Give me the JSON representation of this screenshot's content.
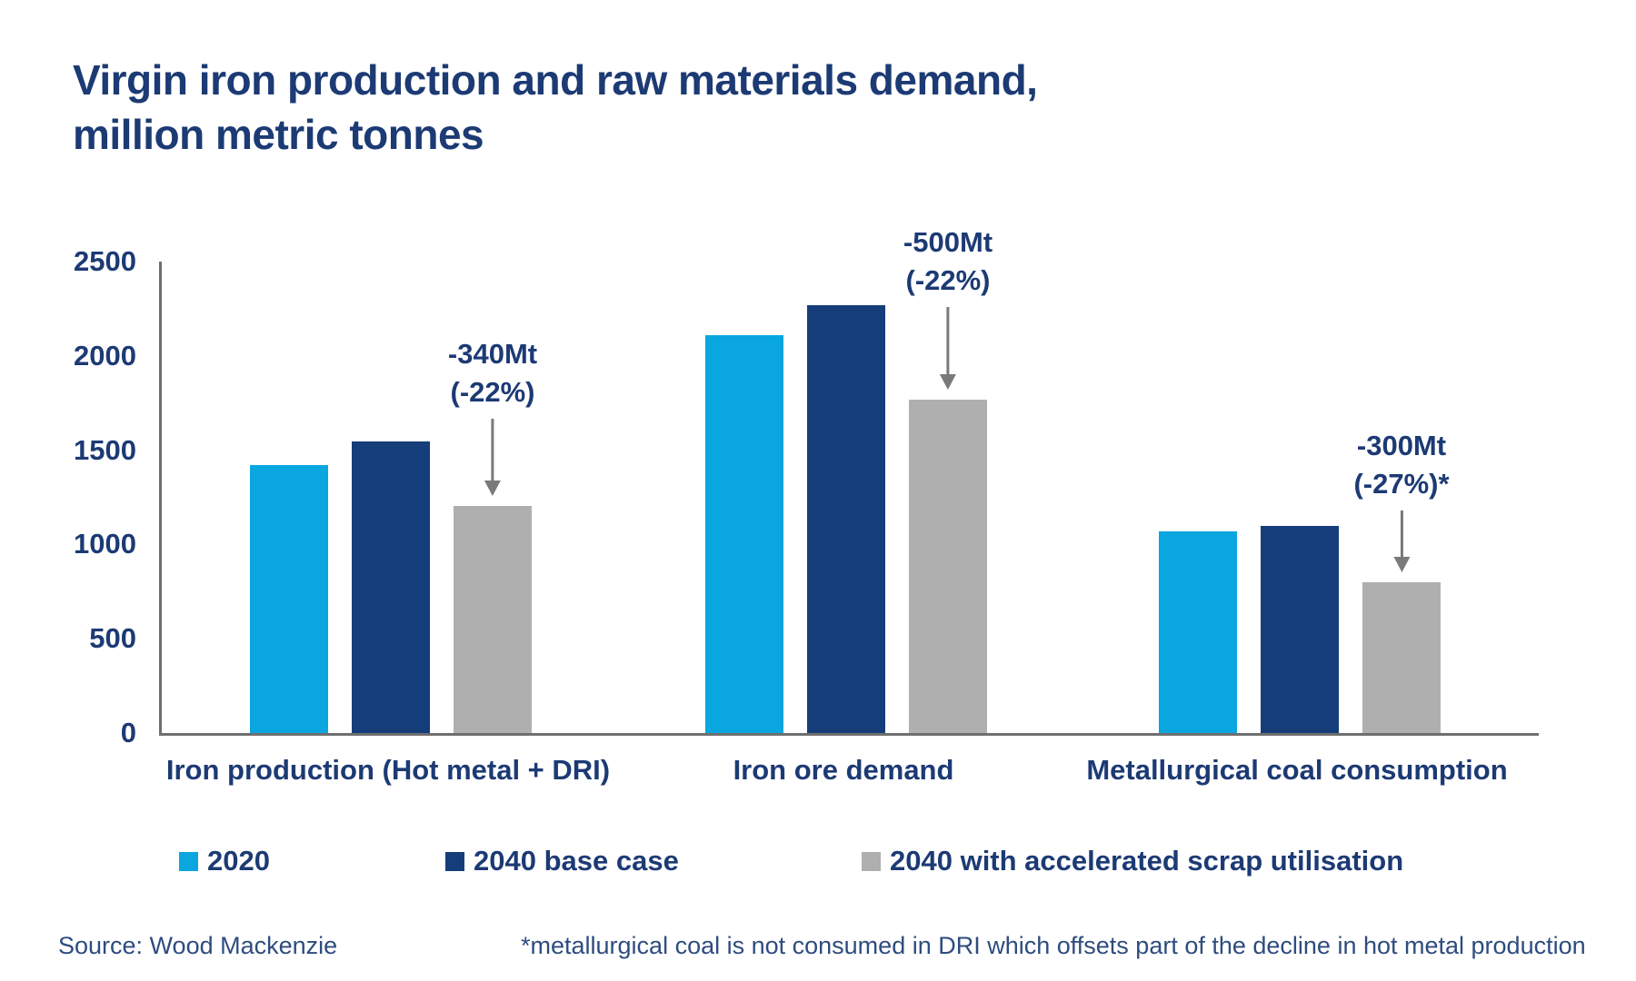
{
  "title": {
    "line1": "Virgin iron production and raw materials demand,",
    "line2": "million metric tonnes"
  },
  "chart_data": {
    "type": "bar",
    "title": "Virgin iron production and raw materials demand, million metric tonnes",
    "categories": [
      "Iron production (Hot metal + DRI)",
      "Iron ore demand",
      "Metallurgical coal consumption"
    ],
    "series": [
      {
        "name": "2020",
        "color": "#0AA6DF",
        "values": [
          1420,
          2110,
          1070
        ]
      },
      {
        "name": "2040 base case",
        "color": "#153D7A",
        "values": [
          1545,
          2270,
          1100
        ]
      },
      {
        "name": "2040 with accelerated scrap utilisation",
        "color": "#AFAFAF",
        "values": [
          1205,
          1770,
          800
        ]
      }
    ],
    "ylim": [
      0,
      2500
    ],
    "yticks": [
      0,
      500,
      1000,
      1500,
      2000,
      2500
    ],
    "ylabel": "million metric tonnes",
    "xlabel": "",
    "grid": false,
    "legend_position": "bottom",
    "annotations": [
      {
        "group_index": 0,
        "series_index": 2,
        "line1": "-340Mt",
        "line2": "(-22%)"
      },
      {
        "group_index": 1,
        "series_index": 2,
        "line1": "-500Mt",
        "line2": "(-22%)"
      },
      {
        "group_index": 2,
        "series_index": 2,
        "line1": "-300Mt",
        "line2": "(-27%)*"
      }
    ],
    "arrow_color": "#7A7A7A",
    "axis_color": "#6F6F6F",
    "text_color": "#1C3A74"
  },
  "footer": {
    "source": "Source: Wood Mackenzie",
    "footnote": "*metallurgical coal is not consumed in DRI which offsets part of the decline in hot metal production"
  }
}
